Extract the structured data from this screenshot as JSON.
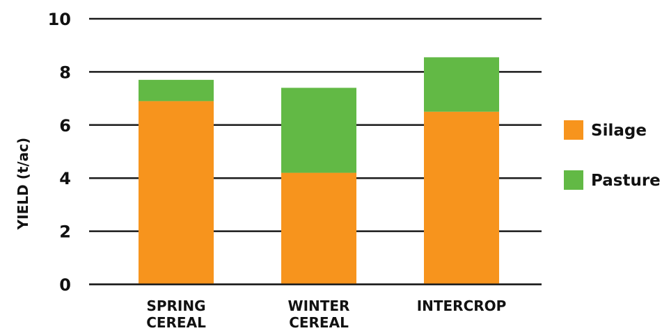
{
  "chart_data": {
    "type": "bar",
    "stacked": true,
    "categories": [
      [
        "SPRING",
        "CEREAL"
      ],
      [
        "WINTER",
        "CEREAL"
      ],
      [
        "INTERCROP"
      ]
    ],
    "series": [
      {
        "name": "Silage",
        "values": [
          6.9,
          4.2,
          6.5
        ],
        "color": "#f7941d"
      },
      {
        "name": "Pasture",
        "values": [
          0.8,
          3.2,
          2.05
        ],
        "color": "#62b945"
      }
    ],
    "ylabel": "YIELD (t/ac)",
    "xlabel": "",
    "title": "",
    "ylim": [
      0,
      10
    ],
    "yticks": [
      0,
      2,
      4,
      6,
      8,
      10
    ],
    "grid": true,
    "legend_position": "right"
  }
}
